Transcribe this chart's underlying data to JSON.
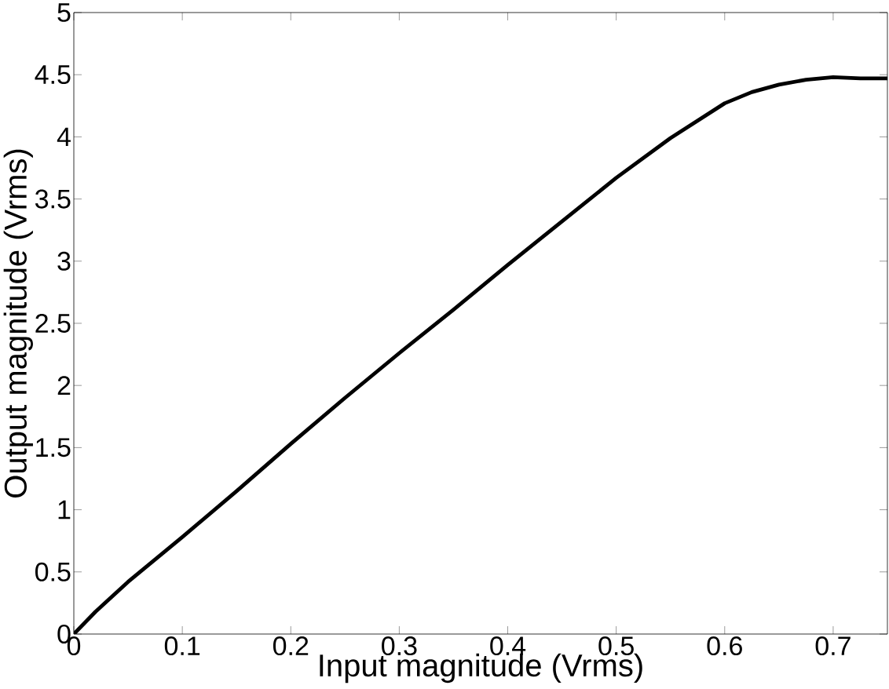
{
  "chart_data": {
    "type": "line",
    "xlabel": "Input magnitude (Vrms)",
    "ylabel": "Output magnitude (Vrms)",
    "x": [
      0,
      0.02,
      0.05,
      0.1,
      0.15,
      0.2,
      0.25,
      0.3,
      0.35,
      0.4,
      0.45,
      0.5,
      0.55,
      0.6,
      0.625,
      0.65,
      0.675,
      0.7,
      0.725,
      0.75
    ],
    "series": [
      {
        "color": "#000000",
        "values": [
          0,
          0.18,
          0.42,
          0.78,
          1.15,
          1.53,
          1.9,
          2.26,
          2.61,
          2.97,
          3.32,
          3.67,
          3.99,
          4.27,
          4.36,
          4.42,
          4.46,
          4.48,
          4.47,
          4.47
        ]
      }
    ],
    "xlim": [
      0,
      0.75
    ],
    "ylim": [
      0,
      5
    ],
    "xticks": [
      0,
      0.1,
      0.2,
      0.3,
      0.4,
      0.5,
      0.6,
      0.7
    ],
    "yticks": [
      0,
      0.5,
      1,
      1.5,
      2,
      2.5,
      3,
      3.5,
      4,
      4.5,
      5
    ],
    "grid": false
  }
}
